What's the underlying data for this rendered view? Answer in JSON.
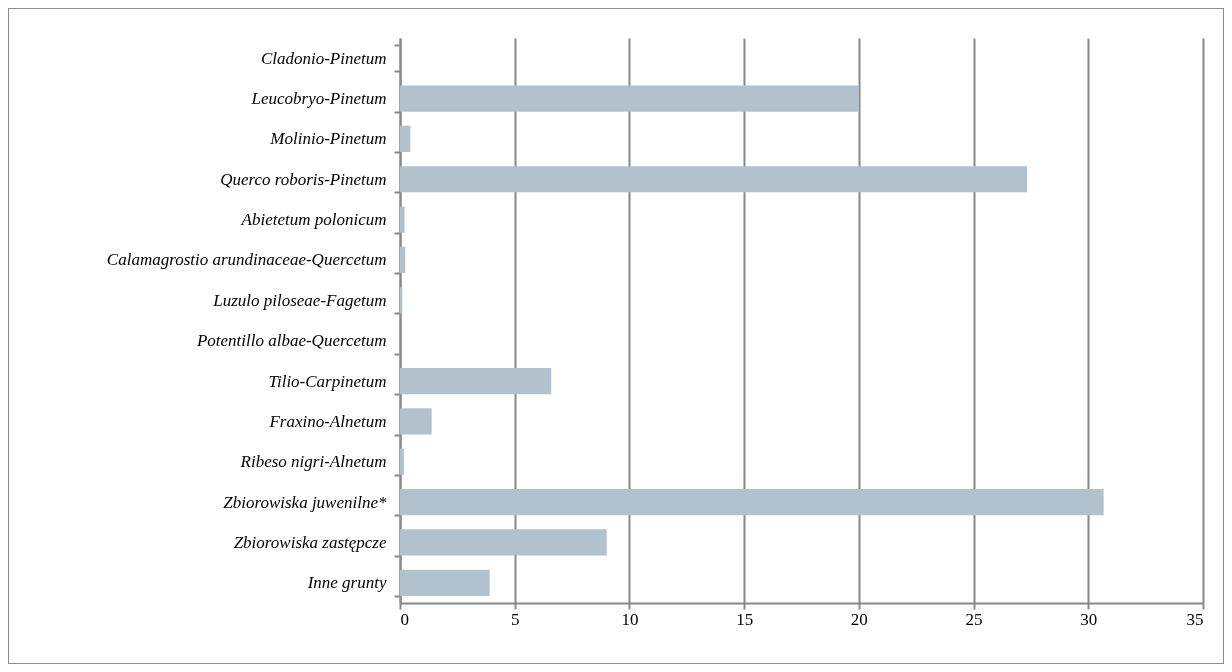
{
  "chart_data": {
    "type": "bar",
    "orientation": "horizontal",
    "categories": [
      "Cladonio-Pinetum",
      "Leucobryo-Pinetum",
      "Molinio-Pinetum",
      "Querco roboris-Pinetum",
      "Abietetum polonicum",
      "Calamagrostio arundinaceae-Quercetum",
      "Luzulo piloseae-Fagetum",
      "Potentillo albae-Quercetum",
      "Tilio-Carpinetum",
      "Fraxino-Alnetum",
      "Ribeso nigri-Alnetum",
      "Zbiorowiska juwenilne*",
      "Zbiorowiska zastępcze",
      "Inne grunty"
    ],
    "values": [
      0,
      20.0,
      0.45,
      27.33,
      0.2,
      0.23,
      0.1,
      0,
      6.59,
      1.38,
      0.17,
      30.67,
      9.01,
      3.91
    ],
    "color": "#b1c1ce",
    "xlim": [
      0,
      35
    ],
    "xticks": [
      0,
      5,
      10,
      15,
      20,
      25,
      30,
      35
    ],
    "grid": "x"
  }
}
